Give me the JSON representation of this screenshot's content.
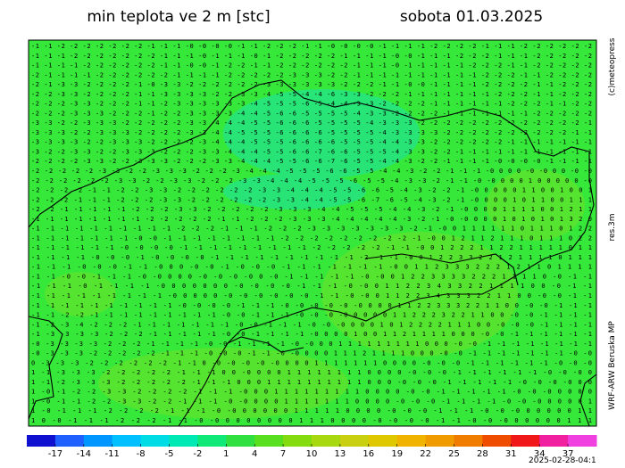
{
  "header": {
    "title": "min teplota ve 2 m [stc]",
    "date": "sobota 01.03.2025"
  },
  "side_labels": [
    "(c)meteopress",
    "res.3m",
    "WRF-ARW Beruska MP"
  ],
  "map": {
    "grid_rows": [
      "-1 -1 -2 -2 -2 -2 -2 -2 -2 -1 -1 -1 -0 -0 -0 -0 -1 -1 -2 -2 -2 -1 -1 -0 -0 -0 -0 -1 -1 -1 -1 -2 -2 -2 -2 -1 -1 -1 -2 -2 -2 -2 -2 -2",
      "-1 -1 -1 -2 -2 -2 -2 -2 -2 -2 -1 -1 -1 -0 -1 -1 -1 -0 -1 -2 -2 -2 -2 -2 -1 -1 -1 -1 -0 -0 -1 -1 -1 -2 -2 -2 -1 -1 -1 -2 -2 -2 -2 -2",
      "-1 -1 -1 -1 -2 -2 -2 -2 -2 -2 -1 -1 -0 -0 -1 -2 -2 -1 -1 -2 -2 -2 -2 -2 -2 -1 -1 -1 -0 -1 -1 -1 -1 -1 -2 -2 -2 -1 -1 -2 -2 -2 -2 -2",
      "-2 -1 -1 -1 -1 -2 -2 -2 -2 -2 -2 -1 -1 -1 -1 -2 -2 -2 -2 -2 -3 -3 -3 -2 -2 -1 -1 -1 -1 -1 -1 -1 -1 -1 -1 -2 -2 -2 -1 -1 -2 -2 -2 -2",
      "-2 -1 -3 -3 -2 -2 -2 -2 -1 -0 -3 -3 -2 -2 -2 -2 -2 -2 -3 -3 -3 -3 -3 -3 -2 -2 -2 -1 -1 -0 -0 -1 -1 -1 -1 -2 -2 -2 -2 -1 -1 -2 -2 -2",
      "-2 -2 -3 -3 -2 -2 -2 -2 -1 -1 -3 -3 -3 -3 -2 -2 -3 -3 -4 -5 -5 -4 -4 -6 -3 -3 -2 -2 -2 -1 -1 -1 -1 -1 -1 -1 -2 -2 -2 -1 -1 -2 -2 -2",
      "-2 -2 -2 -3 -3 -2 -2 -2 -1 -1 -2 -3 -3 -3 -3 -3 -3 -4 -5 -5 -5 -6 -5 -4 -4 -3 -3 -2 -2 -2 -2 -1 -1 -1 -1 -1 -1 -2 -2 -2 -1 -1 -2 -2",
      "-2 -2 -2 -3 -3 -3 -2 -2 -2 -1 -2 -2 -3 -3 -3 -3 -4 -4 -5 -6 -6 -5 -5 -5 -5 -4 -3 -3 -2 -2 -2 -2 -1 -1 -1 -1 -1 -1 -1 -2 -2 -2 -2 -2",
      "-3 -3 -2 -2 -3 -3 -3 -2 -2 -2 -2 -2 -3 -3 -4 -4 -4 -5 -5 -6 -6 -6 -5 -5 -5 -5 -4 -3 -3 -3 -2 -2 -2 -2 -2 -2 -2 -2 -2 -2 -2 -2 -2 -1",
      "-3 -3 -3 -2 -2 -3 -3 -3 -2 -2 -2 -2 -3 -3 -4 -4 -5 -5 -5 -6 -6 -6 -6 -5 -5 -5 -5 -4 -3 -3 -3 -3 -2 -2 -2 -2 -2 -2 -2 -2 -2 -2 -1 -1",
      "-3 -3 -3 -3 -2 -2 -3 -3 -3 -2 -2 -2 -2 -3 -4 -4 -4 -5 -5 -5 -6 -6 -6 -6 -5 -5 -5 -4 -4 -3 -3 -2 -2 -2 -2 -2 -2 -1 -1 -1 -1 -1 -1 -1",
      "-3 -2 -2 -3 -3 -2 -2 -3 -3 -3 -2 -2 -2 -3 -3 -4 -4 -4 -5 -5 -6 -6 -7 -6 -6 -5 -5 -5 -4 -3 -3 -2 -2 -1 -1 -1 -1 -1 -1 -1 -1 -1 -1 -1",
      "-2 -2 -2 -2 -3 -3 -2 -2 -3 -3 -3 -2 -2 -2 -3 -3 -4 -4 -4 -5 -5 -6 -6 -7 -6 -5 -5 -4 -4 -3 -2 -2 -1 -1 -1 -1 -0 -0 -0 -0 -1 -1 -1 -1",
      "-2 -2 -2 -2 -2 -3 -3 -2 -2 -3 -3 -3 -2 -2 -2 -3 -4 -4 -4 -5 -5 -5 -6 -6 -5 -5 -4 -4 -3 -2 -2 -1 -1 -1 -0 0 0 0 -0 -0 0 0 -0 -0",
      "-2 -2 -2 -2 -2 -2 -3 -3 -2 -2 -3 -3 -2 -2 -2 -3 -3 -4 -4 -4 -5 -5 -5 -6 -5 -5 -4 -3 -3 -2 -1 -1 -0 -0 0 0 0 1 0 0 0 0 0 -0",
      "-2 -2 -2 -2 -1 -1 -2 -2 -3 -3 -2 -2 -2 -2 -2 -2 -3 -3 -4 -4 -4 -5 -5 -6 -6 -5 -4 -3 -2 -2 -1 -0 0 0 0 0 1 1 0 0 1 0 0 1",
      "-2 -2 -2 -1 -1 -1 -2 -2 -2 -3 -3 -2 -2 -2 -2 -2 -2 -3 -3 -4 -4 -5 -5 -6 -7 -6 -5 -4 -3 -2 -1 -0 0 0 0 1 0 1 1 0 0 1 1 1",
      "-2 -2 -1 -1 -1 -1 -1 -2 -2 -2 -3 -3 -2 -2 -2 -2 -2 -3 -3 -3 -4 -4 -5 -5 -5 -4 -4 -3 -2 -1 -0 0 0 0 1 1 1 1 0 0 1 2 1 1",
      "-1 -1 -1 -1 -1 -1 -1 -1 -2 -2 -2 -2 -2 -1 -1 -2 -2 -2 -3 -3 -3 -4 -4 -4 -4 -4 -3 -2 -1 -0 -0 0 0 0 1 0 1 0 1 0 1 3 2 0",
      "-1 -1 -1 -1 -1 -1 -1 -1 -1 -1 -2 -2 -2 -1 -1 -1 -2 -2 -2 -3 -3 -3 -3 -3 -3 -3 -2 -1 -0 0 1 1 1 1 1 1 0 1 1 1 0 1 2 2",
      "-1 -1 -1 -1 -1 -1 -1 -0 -0 -1 -1 -1 -1 -1 -1 -1 -1 -2 -2 -2 -2 -2 -2 -2 -2 -2 -1 -0 0 1 2 1 1 2 1 1 1 0 1 1 1 0 2 2",
      "-1 -1 -1 -1 -1 -1 -0 -0 -0 -0 -1 -1 -1 -1 -1 -1 -1 -1 -1 -2 -2 -2 -2 -2 -1 -1 -0 0 1 2 2 2 1 1 2 2 1 1 1 1 1 0 1 1",
      "-1 -1 -1 -1 -0 -0 -0 -1 -0 -0 -0 -0 -1 -1 -1 -1 -1 -1 -1 -1 -1 -1 -2 -1 -1 -0 0 1 2 2 3 3 2 2 1 2 1 1 1 1 0 1 1 1",
      "-1 -1 -1 -0 -0 -0 -1 -1 -0 0 0 -0 -0 -1 -0 -0 -0 -1 -1 -1 -1 -1 -1 -1 -0 0 1 1 2 3 3 3 2 2 2 1 2 1 1 0 1 1 1 1",
      "-1 -1 -0 -0 -1 -1 -1 -0 -0 0 0 0 -0 -0 -0 -0 0 -0 -1 -1 -1 -1 -1 -0 -0 0 1 2 2 3 3 3 3 2 2 2 1 1 1 1 0 -0 -1 -1",
      "-1 -1 -1 -0 -1 -1 -1 -1 -0 0 0 0 0 0 0 -0 -0 -0 -0 -1 -1 -1 -0 -0 0 1 1 2 2 3 4 3 3 2 2 1 1 1 1 0 0 -0 -1 -1",
      "-1 -1 -1 -1 -1 -1 -1 -1 -1 -0 0 0 0 0 -0 -0 -0 -0 -0 -0 -1 -1 -0 -0 0 1 1 2 2 3 4 3 3 3 2 2 1 1 0 0 -0 -0 -1 -1",
      "-1 -1 -1 -1 -1 -1 -1 -1 -1 -1 -0 -0 -0 -0 -1 -1 -1 -0 -0 -0 -0 -0 -0 0 0 0 1 1 2 2 3 3 3 2 2 1 1 0 0 -0 -0 -1 -1 -1",
      "-1 -1 -2 -2 -1 -1 -1 -1 -1 -1 -1 -1 -1 -0 -0 -1 -1 -1 -0 -0 -0 -0 0 0 0 0 1 1 2 2 2 3 2 2 1 1 0 0 -0 -0 -1 -1 -1 -1",
      "-1 -2 -3 -4 -2 -2 -2 -1 -1 -1 -1 -1 -1 -1 -0 -0 -1 -1 -1 -0 -0 -0 0 0 0 1 0 1 2 2 2 2 1 1 1 0 0 -0 -0 -0 -1 -1 -1 -1",
      "-1 -3 -3 -3 -3 -2 -2 -2 -1 -1 -1 -1 -1 -0 -0 -1 -1 -1 -1 -0 0 0 0 1 0 0 1 1 2 1 1 1 1 0 0 0 -0 -0 -1 -1 -1 -1 -1 -1",
      "-0 -3 -3 -3 -3 -2 -2 -2 -1 -1 -1 -1 -0 -0 -1 -1 -1 -1 -0 -0 0 0 1 1 1 1 1 1 1 1 1 0 0 0 -0 -0 -1 -1 -1 -1 -1 -1 -1 -1",
      "-0 -3 -3 -3 -2 -2 -2 -2 -2 -1 -1 -1 -0 -0 -0 -1 -1 -0 -0 0 0 0 1 1 1 2 1 1 1 1 0 0 0 -0 -0 -1 -1 -1 -1 -1 -1 -1 -0 -0",
      "0 -3 -3 -3 -2 -2 -2 -2 -2 -2 -1 -1 0 -0 -0 -0 -0 -0 0 0 0 1 1 1 1 1 1 1 0 0 0 0 -0 -0 -0 -1 -1 -1 -1 -1 -1 -0 -0 -0",
      "1 -1 -3 -3 -3 -2 -2 -2 -2 -2 -1 -1 -1 0 0 -0 0 0 0 1 1 1 1 1 1 1 1 0 0 0 0 -0 -0 -0 -1 -1 -1 -1 -1 -1 -0 -0 -0 0",
      "1 -1 -2 -3 -3 -3 -2 -2 -2 -2 -2 -1 -1 -1 0 0 0 1 1 1 1 1 1 1 1 1 1 0 0 0 -0 -0 -0 -1 -1 -1 -1 -1 -0 -0 -0 -0 0 0",
      "1 -0 -1 -2 -2 -3 -3 -2 -2 -2 -2 -1 -1 -1 -0 0 0 1 1 1 1 1 1 1 1 1 0 0 0 0 -0 -0 -1 -1 -1 -1 -1 -0 -0 -0 0 0 0 0",
      "1 -0 -1 -1 -2 -2 -3 -3 -2 -2 -1 -1 -1 -0 -0 0 0 0 1 1 1 1 1 1 1 0 0 0 0 -0 -0 -0 -1 -1 -1 -1 -0 -0 -0 0 0 0 0 1",
      "1 -0 -1 -1 -1 -2 -2 -2 -2 -1 -1 -1 -0 -0 0 0 0 0 0 1 1 1 1 1 0 0 0 0 -0 -0 -0 -1 -1 -1 -0 -0 -0 0 0 0 0 0 1 1",
      "1 0 -0 -1 -1 -1 -2 -2 -2 -1 -1 -0 -0 0 0 0 0 0 0 0 1 1 1 0 0 0 0 -0 -0 -0 -0 -1 -1 -0 -0 -0 0 0 0 0 0 1 1 1"
    ]
  },
  "colorbar": {
    "range": [
      -20,
      40
    ],
    "colors": [
      "#1010d0",
      "#2060ff",
      "#0096ff",
      "#00c0ff",
      "#00dce6",
      "#00e8b4",
      "#10e878",
      "#30e040",
      "#58e020",
      "#84dc10",
      "#a8d810",
      "#c8d010",
      "#e0c800",
      "#f0b400",
      "#f09c00",
      "#f07c00",
      "#f04c00",
      "#f01818",
      "#f020a0",
      "#f040e0"
    ],
    "ticks": [
      -17,
      -14,
      -11,
      -8,
      -5,
      -2,
      1,
      4,
      7,
      10,
      13,
      16,
      19,
      22,
      25,
      28,
      31,
      34,
      37
    ]
  },
  "footer": {
    "timestamp": "2025-02-28-04:1"
  }
}
